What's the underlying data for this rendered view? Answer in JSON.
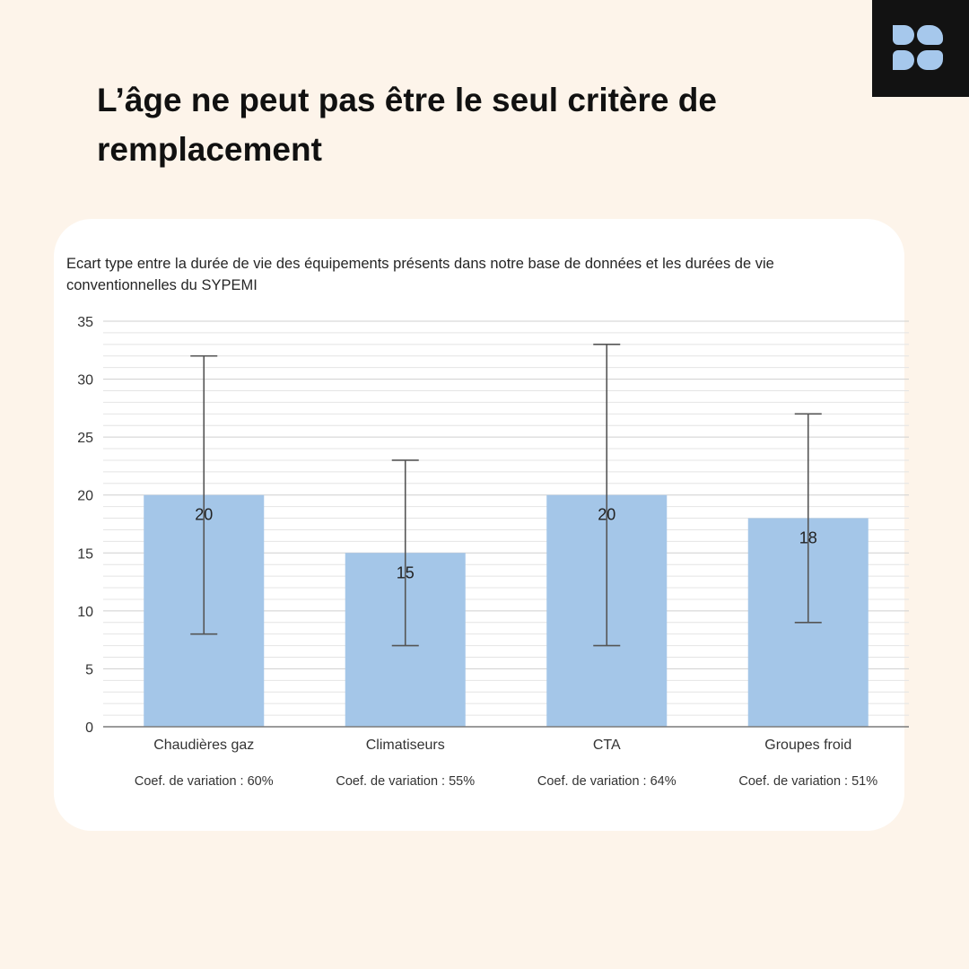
{
  "headline": "L’âge ne peut pas être le seul critère de remplacement",
  "logo": {
    "icon": "four-petal-logo-icon",
    "background": "#121212",
    "color": "#a6c8ec"
  },
  "chart_data": {
    "type": "bar",
    "title": "Ecart type entre la durée de vie des équipements présents dans notre base de données et les durées de vie conventionnelles du SYPEMI",
    "categories": [
      "Chaudières gaz",
      "Climatiseurs",
      "CTA",
      "Groupes froid"
    ],
    "values": [
      20,
      15,
      20,
      18
    ],
    "data_labels": [
      "20",
      "15",
      "20",
      "18"
    ],
    "error_bars": [
      {
        "low": 8,
        "high": 32
      },
      {
        "low": 7,
        "high": 23
      },
      {
        "low": 7,
        "high": 33
      },
      {
        "low": 9,
        "high": 27
      }
    ],
    "notes": [
      "Coef. de variation : 60%",
      "Coef. de variation : 55%",
      "Coef. de variation : 64%",
      "Coef. de variation : 51%"
    ],
    "ylim": [
      0,
      35
    ],
    "yticks": [
      0,
      5,
      10,
      15,
      20,
      25,
      30,
      35
    ],
    "xlabel": "",
    "ylabel": "",
    "grid": true,
    "legend": "none",
    "bar_color": "#a4c6e8",
    "error_color": "#555555"
  }
}
